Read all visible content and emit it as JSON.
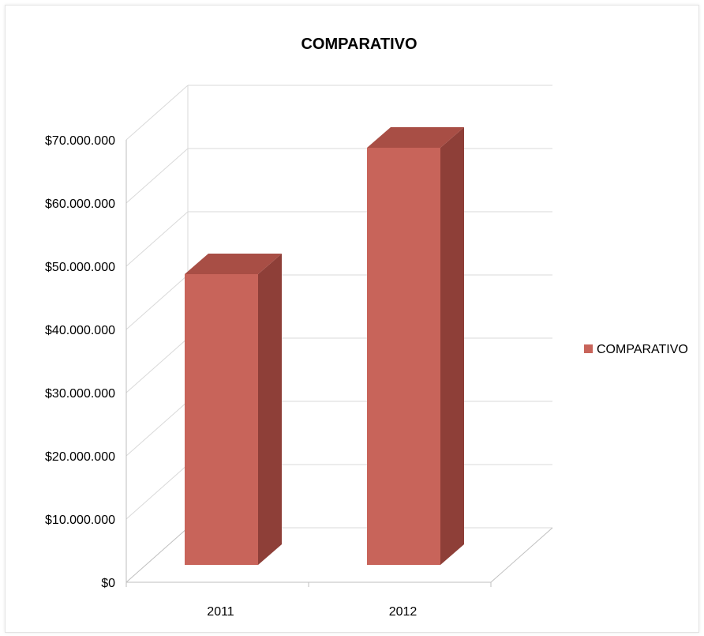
{
  "chart_data": {
    "type": "bar",
    "style": "3d-clustered-column",
    "title": "COMPARATIVO",
    "categories": [
      "2011",
      "2012"
    ],
    "series": [
      {
        "name": "COMPARATIVO",
        "values": [
          46000000,
          66000000
        ],
        "color": "#C8645A",
        "side_color": "#8E3F38",
        "top_color": "#A84E45"
      }
    ],
    "ylim": [
      0,
      70000000
    ],
    "ytick_step": 10000000,
    "ytick_labels": [
      "$0",
      "$10.000.000",
      "$20.000.000",
      "$30.000.000",
      "$40.000.000",
      "$50.000.000",
      "$60.000.000",
      "$70.000.000"
    ],
    "grid": true,
    "legend": "right",
    "xlabel": "",
    "ylabel": ""
  }
}
